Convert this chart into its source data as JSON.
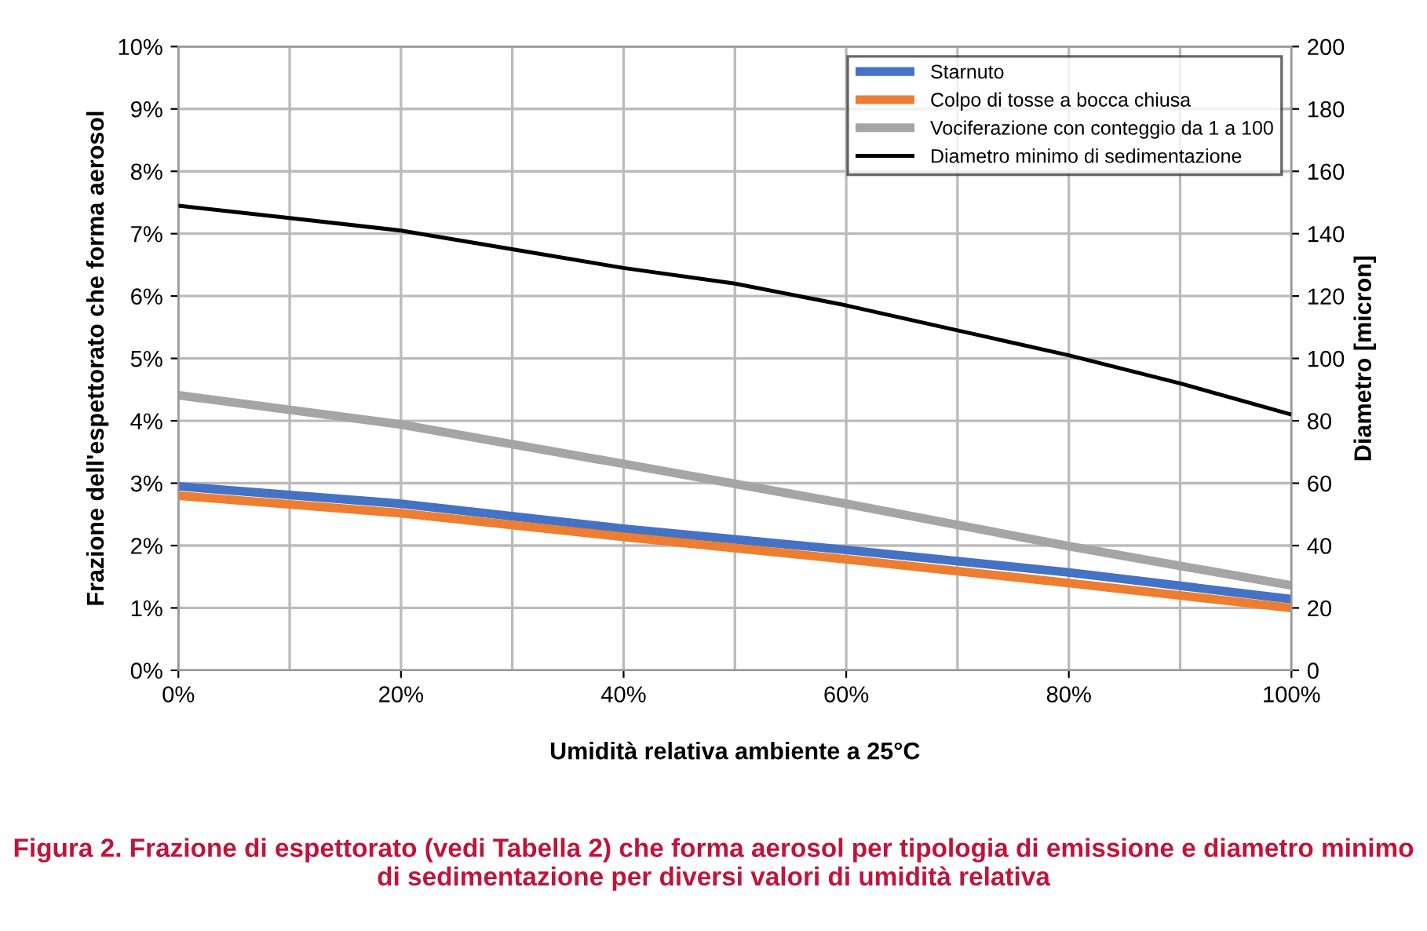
{
  "chart_data": {
    "type": "line",
    "xlabel": "Umidità relativa ambiente a 25°C",
    "ylabel": "Frazione dell'espettorato che forma aerosol",
    "y2label": "Diametro [micron]",
    "x": [
      0,
      20,
      40,
      60,
      80,
      100
    ],
    "series": [
      {
        "name": "Starnuto",
        "color": "#4472c4",
        "values": [
          2.95,
          2.67,
          2.27,
          1.93,
          1.57,
          1.14
        ]
      },
      {
        "name": "Colpo di tosse a bocca chiusa",
        "color": "#ed7d31",
        "values": [
          2.8,
          2.52,
          2.14,
          1.78,
          1.4,
          1.0
        ]
      },
      {
        "name": "Vociferazione con conteggio da 1 a 100",
        "color": "#a5a5a5",
        "values": [
          4.41,
          3.94,
          3.31,
          2.67,
          1.99,
          1.36
        ]
      },
      {
        "name": "Diametro minimo di sedimentazione",
        "color": "#000000",
        "axis": "y2",
        "x": [
          0,
          10,
          20,
          30,
          40,
          50,
          60,
          70,
          80,
          90,
          100
        ],
        "values": [
          149,
          145,
          141,
          135,
          129,
          124,
          117,
          109,
          101,
          92,
          82
        ]
      }
    ],
    "xlim": [
      0,
      100
    ],
    "xticks": [
      {
        "value": 0,
        "label": "0%"
      },
      {
        "value": 20,
        "label": "20%"
      },
      {
        "value": 40,
        "label": "40%"
      },
      {
        "value": 60,
        "label": "60%"
      },
      {
        "value": 80,
        "label": "80%"
      },
      {
        "value": 100,
        "label": "100%"
      }
    ],
    "ylim": [
      0,
      10
    ],
    "yticks": [
      {
        "value": 0,
        "label": "0%"
      },
      {
        "value": 1,
        "label": "1%"
      },
      {
        "value": 2,
        "label": "2%"
      },
      {
        "value": 3,
        "label": "3%"
      },
      {
        "value": 4,
        "label": "4%"
      },
      {
        "value": 5,
        "label": "5%"
      },
      {
        "value": 6,
        "label": "6%"
      },
      {
        "value": 7,
        "label": "7%"
      },
      {
        "value": 8,
        "label": "8%"
      },
      {
        "value": 9,
        "label": "9%"
      },
      {
        "value": 10,
        "label": "10%"
      }
    ],
    "y2lim": [
      0,
      200
    ],
    "y2ticks": [
      0,
      20,
      40,
      60,
      80,
      100,
      120,
      140,
      160,
      180,
      200
    ],
    "grid": true,
    "legend": "top right",
    "line_style": "solid",
    "marker": "none",
    "annotations": [
      "Figura 2. Frazione di espettorato (vedi Tabella 2) che forma aerosol per tipologia di emissione e diametro minimo di sedimentazione per diversi valori di umidità relativa"
    ]
  }
}
